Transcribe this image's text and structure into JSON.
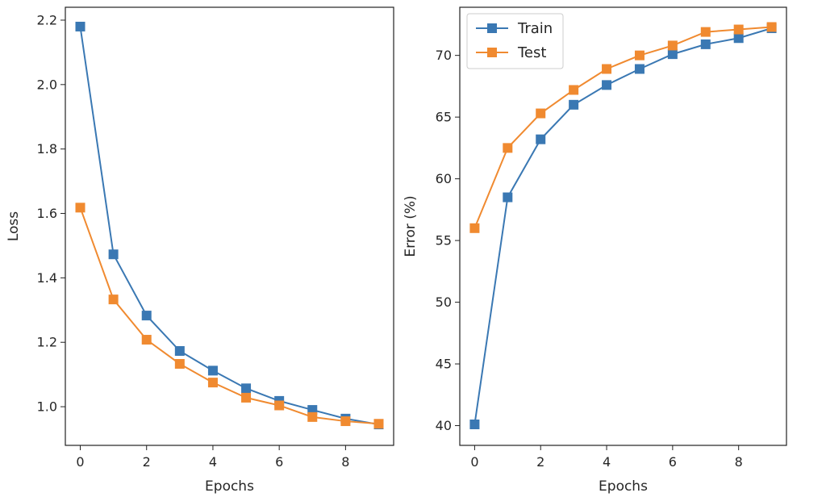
{
  "colors": {
    "train": "#3a78b3",
    "test": "#f08a30",
    "axis": "#222222",
    "legend_border": "#cccccc"
  },
  "chart_data": [
    {
      "type": "line",
      "title": "",
      "xlabel": "Epochs",
      "ylabel": "Loss",
      "xlim": [
        -0.45,
        9.45
      ],
      "ylim": [
        0.88,
        2.24
      ],
      "xticks": [
        0,
        2,
        4,
        6,
        8
      ],
      "xtick_labels": [
        "0",
        "2",
        "4",
        "6",
        "8"
      ],
      "yticks": [
        1.0,
        1.2,
        1.4,
        1.6,
        1.8,
        2.0,
        2.2
      ],
      "ytick_labels": [
        "1.0",
        "1.2",
        "1.4",
        "1.6",
        "1.8",
        "2.0",
        "2.2"
      ],
      "marker": "square",
      "legend": null,
      "series": [
        {
          "name": "Train",
          "color_key": "train",
          "x": [
            0,
            1,
            2,
            3,
            4,
            5,
            6,
            7,
            8,
            9
          ],
          "values": [
            2.18,
            1.473,
            1.283,
            1.173,
            1.112,
            1.057,
            1.018,
            0.99,
            0.963,
            0.945
          ]
        },
        {
          "name": "Test",
          "color_key": "test",
          "x": [
            0,
            1,
            2,
            3,
            4,
            5,
            6,
            7,
            8,
            9
          ],
          "values": [
            1.618,
            1.333,
            1.208,
            1.133,
            1.075,
            1.028,
            1.004,
            0.968,
            0.955,
            0.947
          ]
        }
      ]
    },
    {
      "type": "line",
      "title": "",
      "xlabel": "Epochs",
      "ylabel": "Error (%)",
      "xlim": [
        -0.45,
        9.45
      ],
      "ylim": [
        38.4,
        73.9
      ],
      "xticks": [
        0,
        2,
        4,
        6,
        8
      ],
      "xtick_labels": [
        "0",
        "2",
        "4",
        "6",
        "8"
      ],
      "yticks": [
        40,
        45,
        50,
        55,
        60,
        65,
        70
      ],
      "ytick_labels": [
        "40",
        "45",
        "50",
        "55",
        "60",
        "65",
        "70"
      ],
      "marker": "square",
      "legend": {
        "location": "top-left",
        "entries": [
          "Train",
          "Test"
        ]
      },
      "series": [
        {
          "name": "Train",
          "color_key": "train",
          "x": [
            0,
            1,
            2,
            3,
            4,
            5,
            6,
            7,
            8,
            9
          ],
          "values": [
            40.1,
            58.5,
            63.2,
            66.0,
            67.6,
            68.9,
            70.1,
            70.9,
            71.4,
            72.2
          ]
        },
        {
          "name": "Test",
          "color_key": "test",
          "x": [
            0,
            1,
            2,
            3,
            4,
            5,
            6,
            7,
            8,
            9
          ],
          "values": [
            56.0,
            62.5,
            65.3,
            67.2,
            68.9,
            70.0,
            70.8,
            71.9,
            72.1,
            72.3
          ]
        }
      ]
    }
  ]
}
